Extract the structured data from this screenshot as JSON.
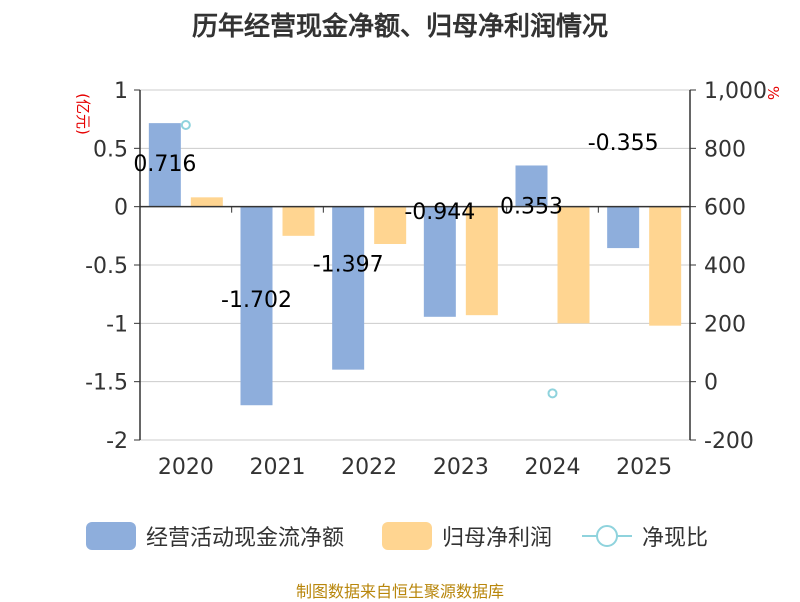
{
  "chart_data": {
    "type": "bar",
    "title": "历年经营现金净额、归母净利润情况",
    "categories": [
      "2020",
      "2021",
      "2022",
      "2023",
      "2024",
      "2025"
    ],
    "series": [
      {
        "name": "经营活动现金流净额",
        "axis": "left",
        "type": "bar",
        "values": [
          0.716,
          -1.702,
          -1.397,
          -0.944,
          0.353,
          -0.355
        ],
        "labels": [
          "0.716",
          "-1.702",
          "-1.397",
          "-0.944",
          "0.353",
          "-0.355"
        ]
      },
      {
        "name": "归母净利润",
        "axis": "left",
        "type": "bar",
        "values": [
          0.08,
          -0.25,
          -0.32,
          -0.93,
          -1.0,
          -1.02
        ]
      },
      {
        "name": "净现比",
        "axis": "right",
        "type": "scatter",
        "values": [
          880,
          null,
          null,
          null,
          -40,
          null
        ]
      }
    ],
    "left_axis": {
      "unit": "(亿元)",
      "ylim": [
        -2,
        1
      ],
      "ticks": [
        1,
        0.5,
        0,
        -0.5,
        -1,
        -1.5,
        -2
      ],
      "tick_labels": [
        "1",
        "0.5",
        "0",
        "-0.5",
        "-1",
        "-1.5",
        "-2"
      ]
    },
    "right_axis": {
      "unit": "%",
      "ylim": [
        -200,
        1000
      ],
      "ticks": [
        1000,
        800,
        600,
        400,
        200,
        0,
        -200
      ],
      "tick_labels": [
        "1,000",
        "800",
        "600",
        "400",
        "200",
        "0",
        "-200"
      ]
    },
    "grid": true,
    "legend_position": "bottom"
  },
  "colors": {
    "cash_flow": "#8eaedc",
    "net_profit": "#ffd591",
    "ratio": "#8fd3dd",
    "grid": "#cccccc",
    "axis": "#333333",
    "unit_label": "#e60000",
    "source": "#b8860b"
  },
  "legend": {
    "items": [
      "经营活动现金流净额",
      "归母净利润",
      "净现比"
    ]
  },
  "footer": {
    "source": "制图数据来自恒生聚源数据库"
  }
}
